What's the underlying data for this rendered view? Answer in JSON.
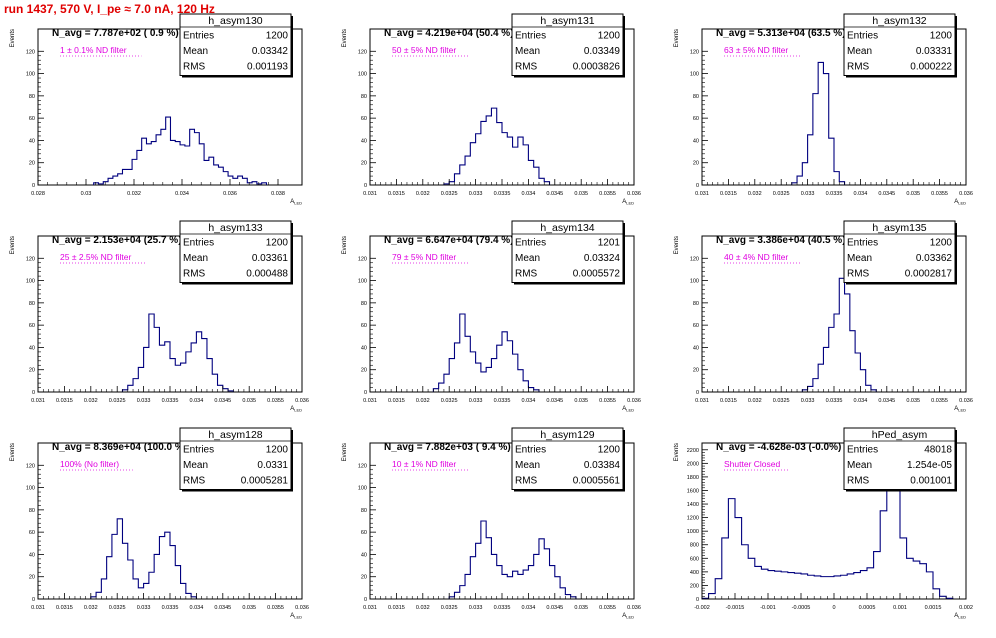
{
  "header": {
    "text": "run 1437,   570 V, I_pe ≈ 7.0 nA, 120 Hz"
  },
  "colors": {
    "line": "#00007f",
    "annotation": "#e000e0",
    "header": "#e00000",
    "title": "#000000"
  },
  "chart_data": [
    {
      "type": "histogram",
      "hist_name": "h_asym130",
      "title": "N_avg = 7.787e+02 ( 0.9 %)",
      "annotation": "1 ± 0.1% ND filter",
      "stats": [
        [
          "Entries",
          "1200"
        ],
        [
          "Mean",
          "0.03342"
        ],
        [
          "RMS",
          "0.001193"
        ]
      ],
      "xlabel": "A_LED",
      "ylabel": "Events",
      "xlim": [
        0.028,
        0.039
      ],
      "ylim": [
        0,
        140
      ],
      "xticks": [
        {
          "v": 0.028,
          "label": "0.028"
        },
        {
          "v": 0.03,
          "label": "0.03"
        },
        {
          "v": 0.032,
          "label": "0.032"
        },
        {
          "v": 0.034,
          "label": "0.034"
        },
        {
          "v": 0.036,
          "label": "0.036"
        },
        {
          "v": 0.038,
          "label": "0.038"
        }
      ],
      "yticks": [
        0,
        20,
        40,
        60,
        80,
        100,
        120
      ],
      "bins": [
        0.03042,
        0.03062,
        0.03082,
        0.03102,
        0.03122,
        0.03142,
        0.03162,
        0.03182,
        0.03202,
        0.03222,
        0.03242,
        0.03262,
        0.03282,
        0.03302,
        0.03322,
        0.03342,
        0.03362,
        0.03382,
        0.03402,
        0.03422,
        0.03442,
        0.03462,
        0.03482,
        0.03502,
        0.03522,
        0.03542,
        0.03562,
        0.03582,
        0.03602,
        0.03622,
        0.03642,
        0.03662,
        0.03682,
        0.03702,
        0.03722,
        0.03742
      ],
      "counts": [
        2,
        1,
        3,
        6,
        8,
        10,
        14,
        14,
        23,
        31,
        42,
        37,
        39,
        45,
        50,
        61,
        40,
        39,
        36,
        35,
        50,
        47,
        37,
        22,
        25,
        18,
        16,
        12,
        8,
        6,
        8,
        6,
        2,
        3,
        1,
        2
      ]
    },
    {
      "type": "histogram",
      "hist_name": "h_asym131",
      "title": "N_avg = 4.219e+04 (50.4 %)",
      "annotation": "50 ± 5% ND filter",
      "stats": [
        [
          "Entries",
          "1200"
        ],
        [
          "Mean",
          "0.03349"
        ],
        [
          "RMS",
          "0.0003826"
        ]
      ],
      "xlabel": "A_LED",
      "ylabel": "Events",
      "xlim": [
        0.031,
        0.036
      ],
      "ylim": [
        0,
        140
      ],
      "xticks": [
        {
          "v": 0.031,
          "label": "0.031"
        },
        {
          "v": 0.0315,
          "label": "0.0315"
        },
        {
          "v": 0.032,
          "label": "0.032"
        },
        {
          "v": 0.0325,
          "label": "0.0325"
        },
        {
          "v": 0.033,
          "label": "0.033"
        },
        {
          "v": 0.0335,
          "label": "0.0335"
        },
        {
          "v": 0.034,
          "label": "0.034"
        },
        {
          "v": 0.0345,
          "label": "0.0345"
        },
        {
          "v": 0.035,
          "label": "0.035"
        },
        {
          "v": 0.0355,
          "label": "0.0355"
        },
        {
          "v": 0.036,
          "label": "0.036"
        }
      ],
      "yticks": [
        0,
        20,
        40,
        60,
        80,
        100,
        120
      ],
      "bins": [
        0.03245,
        0.03255,
        0.03265,
        0.03275,
        0.03285,
        0.03295,
        0.03305,
        0.03315,
        0.03325,
        0.03335,
        0.03345,
        0.03355,
        0.03365,
        0.03375,
        0.03385,
        0.03395,
        0.03405,
        0.03415,
        0.03425,
        0.03435
      ],
      "counts": [
        1,
        3,
        10,
        18,
        26,
        38,
        46,
        57,
        62,
        69,
        56,
        47,
        43,
        34,
        43,
        36,
        22,
        16,
        6,
        3
      ]
    },
    {
      "type": "histogram",
      "hist_name": "h_asym132",
      "title": "N_avg = 5.313e+04 (63.5 %)",
      "annotation": "63 ± 5% ND filter",
      "stats": [
        [
          "Entries",
          "1200"
        ],
        [
          "Mean",
          "0.03331"
        ],
        [
          "RMS",
          "0.000222"
        ]
      ],
      "xlabel": "A_LED",
      "ylabel": "Events",
      "xlim": [
        0.031,
        0.036
      ],
      "ylim": [
        0,
        140
      ],
      "xticks": [
        {
          "v": 0.031,
          "label": "0.031"
        },
        {
          "v": 0.0315,
          "label": "0.0315"
        },
        {
          "v": 0.032,
          "label": "0.032"
        },
        {
          "v": 0.0325,
          "label": "0.0325"
        },
        {
          "v": 0.033,
          "label": "0.033"
        },
        {
          "v": 0.0335,
          "label": "0.0335"
        },
        {
          "v": 0.034,
          "label": "0.034"
        },
        {
          "v": 0.0345,
          "label": "0.0345"
        },
        {
          "v": 0.035,
          "label": "0.035"
        },
        {
          "v": 0.0355,
          "label": "0.0355"
        },
        {
          "v": 0.036,
          "label": "0.036"
        }
      ],
      "yticks": [
        0,
        20,
        40,
        60,
        80,
        100,
        120
      ],
      "bins": [
        0.03275,
        0.03285,
        0.03295,
        0.03305,
        0.03315,
        0.03325,
        0.03335,
        0.03345,
        0.03355,
        0.03365
      ],
      "counts": [
        2,
        8,
        20,
        45,
        82,
        110,
        100,
        42,
        12,
        3
      ]
    },
    {
      "type": "histogram",
      "hist_name": "h_asym133",
      "title": "N_avg = 2.153e+04 (25.7 %)",
      "annotation": "25 ± 2.5% ND filter",
      "stats": [
        [
          "Entries",
          "1200"
        ],
        [
          "Mean",
          "0.03361"
        ],
        [
          "RMS",
          "0.000488"
        ]
      ],
      "xlabel": "A_LED",
      "ylabel": "Events",
      "xlim": [
        0.031,
        0.036
      ],
      "ylim": [
        0,
        140
      ],
      "xticks": [
        {
          "v": 0.031,
          "label": "0.031"
        },
        {
          "v": 0.0315,
          "label": "0.0315"
        },
        {
          "v": 0.032,
          "label": "0.032"
        },
        {
          "v": 0.0325,
          "label": "0.0325"
        },
        {
          "v": 0.033,
          "label": "0.033"
        },
        {
          "v": 0.0335,
          "label": "0.0335"
        },
        {
          "v": 0.034,
          "label": "0.034"
        },
        {
          "v": 0.0345,
          "label": "0.0345"
        },
        {
          "v": 0.035,
          "label": "0.035"
        },
        {
          "v": 0.0355,
          "label": "0.0355"
        },
        {
          "v": 0.036,
          "label": "0.036"
        }
      ],
      "yticks": [
        0,
        20,
        40,
        60,
        80,
        100,
        120
      ],
      "bins": [
        0.03265,
        0.03275,
        0.03285,
        0.03295,
        0.03305,
        0.03315,
        0.03325,
        0.03335,
        0.03345,
        0.03355,
        0.03365,
        0.03375,
        0.03385,
        0.03395,
        0.03405,
        0.03415,
        0.03425,
        0.03435,
        0.03445,
        0.03455,
        0.03465
      ],
      "counts": [
        2,
        6,
        12,
        22,
        40,
        70,
        58,
        42,
        45,
        30,
        24,
        26,
        36,
        44,
        54,
        48,
        30,
        16,
        6,
        3,
        1
      ]
    },
    {
      "type": "histogram",
      "hist_name": "h_asym134",
      "title": "N_avg = 6.647e+04 (79.4 %)",
      "annotation": "79 ± 5% ND filter",
      "stats": [
        [
          "Entries",
          "1201"
        ],
        [
          "Mean",
          "0.03324"
        ],
        [
          "RMS",
          "0.0005572"
        ]
      ],
      "xlabel": "A_LED",
      "ylabel": "Events",
      "xlim": [
        0.031,
        0.036
      ],
      "ylim": [
        0,
        140
      ],
      "xticks": [
        {
          "v": 0.031,
          "label": "0.031"
        },
        {
          "v": 0.0315,
          "label": "0.0315"
        },
        {
          "v": 0.032,
          "label": "0.032"
        },
        {
          "v": 0.0325,
          "label": "0.0325"
        },
        {
          "v": 0.033,
          "label": "0.033"
        },
        {
          "v": 0.0335,
          "label": "0.0335"
        },
        {
          "v": 0.034,
          "label": "0.034"
        },
        {
          "v": 0.0345,
          "label": "0.0345"
        },
        {
          "v": 0.035,
          "label": "0.035"
        },
        {
          "v": 0.0355,
          "label": "0.0355"
        },
        {
          "v": 0.036,
          "label": "0.036"
        }
      ],
      "yticks": [
        0,
        20,
        40,
        60,
        80,
        100,
        120
      ],
      "bins": [
        0.03225,
        0.03235,
        0.03245,
        0.03255,
        0.03265,
        0.03275,
        0.03285,
        0.03295,
        0.03305,
        0.03315,
        0.03325,
        0.03335,
        0.03345,
        0.03355,
        0.03365,
        0.03375,
        0.03385,
        0.03395,
        0.03405,
        0.03415
      ],
      "counts": [
        3,
        8,
        16,
        30,
        44,
        70,
        50,
        36,
        26,
        18,
        22,
        30,
        42,
        54,
        46,
        34,
        20,
        10,
        4,
        2
      ]
    },
    {
      "type": "histogram",
      "hist_name": "h_asym135",
      "title": "N_avg = 3.386e+04 (40.5 %)",
      "annotation": "40 ± 4% ND filter",
      "stats": [
        [
          "Entries",
          "1200"
        ],
        [
          "Mean",
          "0.03362"
        ],
        [
          "RMS",
          "0.0002817"
        ]
      ],
      "xlabel": "A_LED",
      "ylabel": "Events",
      "xlim": [
        0.031,
        0.036
      ],
      "ylim": [
        0,
        140
      ],
      "xticks": [
        {
          "v": 0.031,
          "label": "0.031"
        },
        {
          "v": 0.0315,
          "label": "0.0315"
        },
        {
          "v": 0.032,
          "label": "0.032"
        },
        {
          "v": 0.0325,
          "label": "0.0325"
        },
        {
          "v": 0.033,
          "label": "0.033"
        },
        {
          "v": 0.0335,
          "label": "0.0335"
        },
        {
          "v": 0.034,
          "label": "0.034"
        },
        {
          "v": 0.0345,
          "label": "0.0345"
        },
        {
          "v": 0.035,
          "label": "0.035"
        },
        {
          "v": 0.0355,
          "label": "0.0355"
        },
        {
          "v": 0.036,
          "label": "0.036"
        }
      ],
      "yticks": [
        0,
        20,
        40,
        60,
        80,
        100,
        120
      ],
      "bins": [
        0.03295,
        0.03305,
        0.03315,
        0.03325,
        0.03335,
        0.03345,
        0.03355,
        0.03365,
        0.03375,
        0.03385,
        0.03395,
        0.03405,
        0.03415,
        0.03425
      ],
      "counts": [
        2,
        5,
        12,
        25,
        40,
        58,
        70,
        102,
        88,
        55,
        35,
        20,
        6,
        2
      ]
    },
    {
      "type": "histogram",
      "hist_name": "h_asym128",
      "title": "N_avg = 8.369e+04 (100.0 %)",
      "annotation": "100% (No filter)",
      "stats": [
        [
          "Entries",
          "1200"
        ],
        [
          "Mean",
          "0.0331"
        ],
        [
          "RMS",
          "0.0005281"
        ]
      ],
      "xlabel": "A_LED",
      "ylabel": "Events",
      "xlim": [
        0.031,
        0.036
      ],
      "ylim": [
        0,
        140
      ],
      "xticks": [
        {
          "v": 0.031,
          "label": "0.031"
        },
        {
          "v": 0.0315,
          "label": "0.0315"
        },
        {
          "v": 0.032,
          "label": "0.032"
        },
        {
          "v": 0.0325,
          "label": "0.0325"
        },
        {
          "v": 0.033,
          "label": "0.033"
        },
        {
          "v": 0.0335,
          "label": "0.0335"
        },
        {
          "v": 0.034,
          "label": "0.034"
        },
        {
          "v": 0.0345,
          "label": "0.0345"
        },
        {
          "v": 0.035,
          "label": "0.035"
        },
        {
          "v": 0.0355,
          "label": "0.0355"
        },
        {
          "v": 0.036,
          "label": "0.036"
        }
      ],
      "yticks": [
        0,
        20,
        40,
        60,
        80,
        100,
        120
      ],
      "bins": [
        0.03205,
        0.03215,
        0.03225,
        0.03235,
        0.03245,
        0.03255,
        0.03265,
        0.03275,
        0.03285,
        0.03295,
        0.03305,
        0.03315,
        0.03325,
        0.03335,
        0.03345,
        0.03355,
        0.03365,
        0.03375,
        0.03385,
        0.03395
      ],
      "counts": [
        2,
        6,
        18,
        38,
        58,
        72,
        50,
        35,
        18,
        10,
        14,
        24,
        40,
        56,
        60,
        48,
        30,
        14,
        5,
        2
      ]
    },
    {
      "type": "histogram",
      "hist_name": "h_asym129",
      "title": "N_avg = 7.882e+03 ( 9.4 %)",
      "annotation": "10 ± 1% ND filter",
      "stats": [
        [
          "Entries",
          "1200"
        ],
        [
          "Mean",
          "0.03384"
        ],
        [
          "RMS",
          "0.0005561"
        ]
      ],
      "xlabel": "A_LED",
      "ylabel": "Events",
      "xlim": [
        0.031,
        0.036
      ],
      "ylim": [
        0,
        140
      ],
      "xticks": [
        {
          "v": 0.031,
          "label": "0.031"
        },
        {
          "v": 0.0315,
          "label": "0.0315"
        },
        {
          "v": 0.032,
          "label": "0.032"
        },
        {
          "v": 0.0325,
          "label": "0.0325"
        },
        {
          "v": 0.033,
          "label": "0.033"
        },
        {
          "v": 0.0335,
          "label": "0.0335"
        },
        {
          "v": 0.034,
          "label": "0.034"
        },
        {
          "v": 0.0345,
          "label": "0.0345"
        },
        {
          "v": 0.035,
          "label": "0.035"
        },
        {
          "v": 0.0355,
          "label": "0.0355"
        },
        {
          "v": 0.036,
          "label": "0.036"
        }
      ],
      "yticks": [
        0,
        20,
        40,
        60,
        80,
        100,
        120
      ],
      "bins": [
        0.03255,
        0.03265,
        0.03275,
        0.03285,
        0.03295,
        0.03305,
        0.03315,
        0.03325,
        0.03335,
        0.03345,
        0.03355,
        0.03365,
        0.03375,
        0.03385,
        0.03395,
        0.03405,
        0.03415,
        0.03425,
        0.03435,
        0.03445,
        0.03455,
        0.03465,
        0.03475,
        0.03485
      ],
      "counts": [
        2,
        6,
        12,
        22,
        38,
        50,
        70,
        55,
        40,
        30,
        22,
        20,
        25,
        22,
        26,
        30,
        40,
        54,
        45,
        30,
        20,
        10,
        4,
        2
      ]
    },
    {
      "type": "histogram",
      "hist_name": "hPed_asym",
      "title": "N_avg = -4.628e-03 (-0.0%)",
      "annotation": "Shutter Closed",
      "stats": [
        [
          "Entries",
          "48018"
        ],
        [
          "Mean",
          "1.254e-05"
        ],
        [
          "RMS",
          "0.001001"
        ]
      ],
      "xlabel": "A_LED",
      "ylabel": "Events",
      "xlim": [
        -0.002,
        0.002
      ],
      "ylim": [
        0,
        2300
      ],
      "xticks": [
        {
          "v": -0.002,
          "label": "-0.002"
        },
        {
          "v": -0.0015,
          "label": "-0.0015"
        },
        {
          "v": -0.001,
          "label": "-0.001"
        },
        {
          "v": -0.0005,
          "label": "-0.0005"
        },
        {
          "v": 0,
          "label": "0"
        },
        {
          "v": 0.0005,
          "label": "0.0005"
        },
        {
          "v": 0.001,
          "label": "0.001"
        },
        {
          "v": 0.0015,
          "label": "0.0015"
        },
        {
          "v": 0.002,
          "label": "0.002"
        }
      ],
      "yticks": [
        0,
        200,
        400,
        600,
        800,
        1000,
        1200,
        1400,
        1600,
        1800,
        2000,
        2200
      ],
      "bins": [
        -0.00195,
        -0.00185,
        -0.00175,
        -0.00165,
        -0.00155,
        -0.00145,
        -0.00135,
        -0.00125,
        -0.00115,
        -0.00105,
        -0.00095,
        -0.00085,
        -0.00075,
        -0.00065,
        -0.00055,
        -0.00045,
        -0.00035,
        -0.00025,
        -0.00015,
        -5e-05,
        5e-05,
        0.00015,
        0.00025,
        0.00035,
        0.00045,
        0.00055,
        0.00065,
        0.00075,
        0.00085,
        0.00095,
        0.00105,
        0.00115,
        0.00125,
        0.00135,
        0.00145,
        0.00155,
        0.00165,
        0.00175
      ],
      "counts": [
        10,
        80,
        300,
        900,
        1480,
        1200,
        800,
        600,
        480,
        440,
        420,
        410,
        400,
        390,
        380,
        370,
        350,
        340,
        330,
        330,
        340,
        350,
        370,
        390,
        420,
        460,
        700,
        1300,
        2100,
        1800,
        900,
        600,
        560,
        520,
        400,
        150,
        40,
        10
      ]
    }
  ]
}
